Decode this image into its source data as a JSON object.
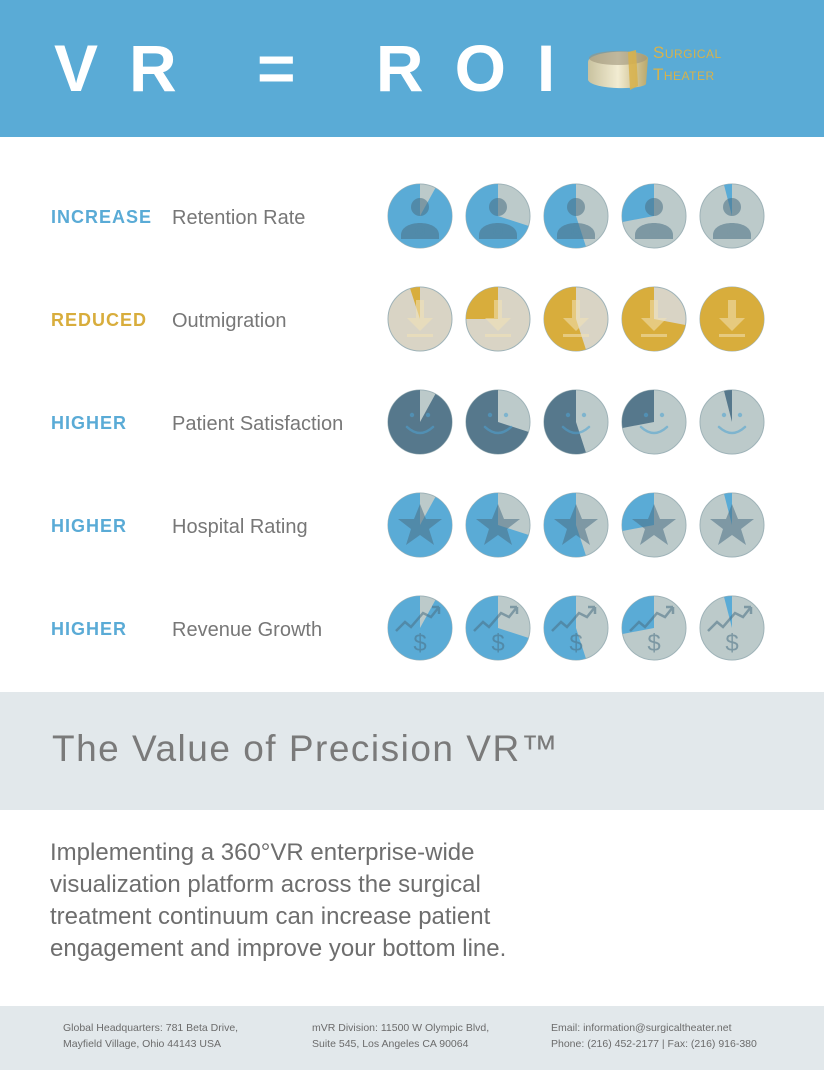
{
  "header": {
    "title": "VR = ROI",
    "logo": {
      "line1": "Surgical",
      "line2": "Theater"
    }
  },
  "colors": {
    "blue": "#5aabd6",
    "gold": "#d8ad3c",
    "slate": "#56788c",
    "grey_fill": "#bccaca",
    "beige_fill": "#d9d4c5"
  },
  "rows": [
    {
      "keyword": "INCREASE",
      "keyword_color": "#5aabd6",
      "label": "Retention Rate",
      "icon": "person-icon",
      "fill_color": "#5aabd6",
      "base_color": "#bccaca",
      "fractions": [
        0.92,
        0.7,
        0.55,
        0.28,
        0.04
      ]
    },
    {
      "keyword": "REDUCED",
      "keyword_color": "#d8ad3c",
      "label": "Outmigration",
      "icon": "down-arrow-icon",
      "fill_color": "#d8ad3c",
      "base_color": "#d9d4c5",
      "fractions": [
        0.05,
        0.25,
        0.55,
        0.72,
        1.0
      ]
    },
    {
      "keyword": "HIGHER",
      "keyword_color": "#5aabd6",
      "label": "Patient Satisfaction",
      "icon": "smiley-icon",
      "fill_color": "#56788c",
      "base_color": "#bccaca",
      "fractions": [
        0.92,
        0.7,
        0.55,
        0.28,
        0.04
      ]
    },
    {
      "keyword": "HIGHER",
      "keyword_color": "#5aabd6",
      "label": "Hospital Rating",
      "icon": "star-icon",
      "fill_color": "#5aabd6",
      "base_color": "#bccaca",
      "fractions": [
        0.92,
        0.7,
        0.55,
        0.28,
        0.04
      ]
    },
    {
      "keyword": "HIGHER",
      "keyword_color": "#5aabd6",
      "label": "Revenue Growth",
      "icon": "dollar-growth-icon",
      "fill_color": "#5aabd6",
      "base_color": "#bccaca",
      "fractions": [
        0.92,
        0.7,
        0.55,
        0.28,
        0.04
      ]
    }
  ],
  "band": {
    "title": "The Value of Precision VR™"
  },
  "body": {
    "lines": [
      "Implementing a 360°VR enterprise-wide",
      "visualization platform across the surgical",
      "treatment continuum can increase patient",
      "engagement and improve your bottom line."
    ]
  },
  "footer": {
    "hq": {
      "line1": "Global Headquarters: 781 Beta Drive,",
      "line2": "Mayfield Village, Ohio 44143 USA"
    },
    "mvr": {
      "line1": "mVR Division: 11500 W Olympic Blvd,",
      "line2": "Suite 545, Los Angeles CA 90064"
    },
    "contact": {
      "line1": "Email: information@surgicaltheater.net",
      "line2": "Phone: (216) 452-2177 | Fax: (216) 916-380"
    }
  }
}
